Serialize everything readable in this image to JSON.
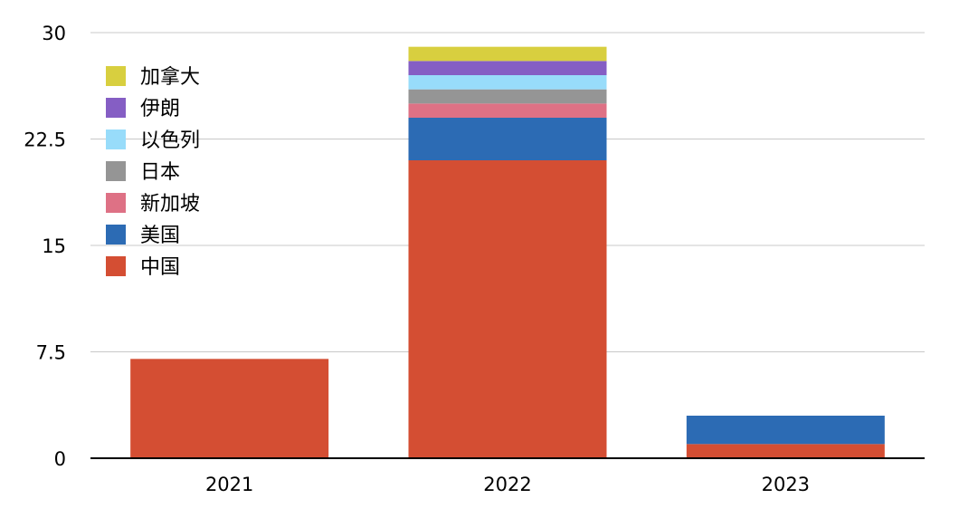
{
  "chart_data": {
    "type": "bar",
    "stacked": true,
    "categories": [
      "2021",
      "2022",
      "2023"
    ],
    "ylim": [
      0,
      30
    ],
    "yticks": [
      "0",
      "7.5",
      "15",
      "22.5",
      "30"
    ],
    "grid": true,
    "legend_position": "top-left",
    "series": [
      {
        "name": "中国",
        "color": "#d44e33",
        "values": [
          7,
          21,
          1
        ]
      },
      {
        "name": "美国",
        "color": "#2c6bb4",
        "values": [
          0,
          3,
          2
        ]
      },
      {
        "name": "新加坡",
        "color": "#de7185",
        "values": [
          0,
          1,
          0
        ]
      },
      {
        "name": "日本",
        "color": "#959595",
        "values": [
          0,
          1,
          0
        ]
      },
      {
        "name": "以色列",
        "color": "#98dcfa",
        "values": [
          0,
          1,
          0
        ]
      },
      {
        "name": "伊朗",
        "color": "#855ec4",
        "values": [
          0,
          1,
          0
        ]
      },
      {
        "name": "加拿大",
        "color": "#d8cf3f",
        "values": [
          0,
          1,
          0
        ]
      }
    ]
  }
}
